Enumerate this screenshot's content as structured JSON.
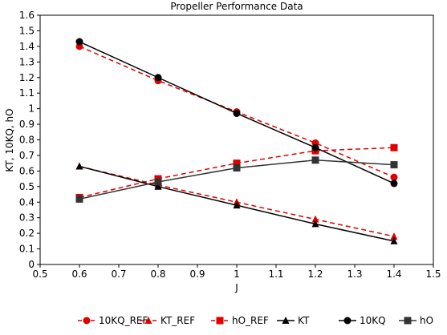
{
  "chart_data": {
    "type": "line",
    "title": "Propeller Performance Data",
    "xlabel": "J",
    "ylabel": "KT, 10KQ, hO",
    "xlim": [
      0.5,
      1.5
    ],
    "ylim": [
      0,
      1.6
    ],
    "xticks": [
      "0.5",
      "0.6",
      "0.7",
      "0.8",
      "0.9",
      "1",
      "1.1",
      "1.2",
      "1.3",
      "1.4",
      "1.5"
    ],
    "yticks": [
      "0",
      "0.1",
      "0.2",
      "0.3",
      "0.4",
      "0.5",
      "0.6",
      "0.7",
      "0.8",
      "0.9",
      "1",
      "1.1",
      "1.2",
      "1.3",
      "1.4",
      "1.5",
      "1.6"
    ],
    "grid": false,
    "legend_position": "bottom",
    "x": [
      0.6,
      0.8,
      1.0,
      1.2,
      1.4
    ],
    "series": [
      {
        "name": "10KQ_REF",
        "values": [
          1.4,
          1.18,
          0.98,
          0.78,
          0.56
        ],
        "color": "#e00000",
        "dashed": true,
        "marker": "circle"
      },
      {
        "name": "KT_REF",
        "values": [
          0.63,
          0.51,
          0.4,
          0.29,
          0.18
        ],
        "color": "#e00000",
        "dashed": true,
        "marker": "triangle"
      },
      {
        "name": "hO_REF",
        "values": [
          0.43,
          0.55,
          0.65,
          0.73,
          0.75
        ],
        "color": "#e00000",
        "dashed": true,
        "marker": "square"
      },
      {
        "name": "KT",
        "values": [
          0.63,
          0.5,
          0.38,
          0.26,
          0.15
        ],
        "color": "#000000",
        "dashed": false,
        "marker": "triangle"
      },
      {
        "name": "10KQ",
        "values": [
          1.43,
          1.2,
          0.97,
          0.75,
          0.52
        ],
        "color": "#000000",
        "dashed": false,
        "marker": "circle"
      },
      {
        "name": "hO",
        "values": [
          0.42,
          0.53,
          0.62,
          0.67,
          0.64
        ],
        "color": "#333333",
        "dashed": false,
        "marker": "square"
      }
    ]
  }
}
